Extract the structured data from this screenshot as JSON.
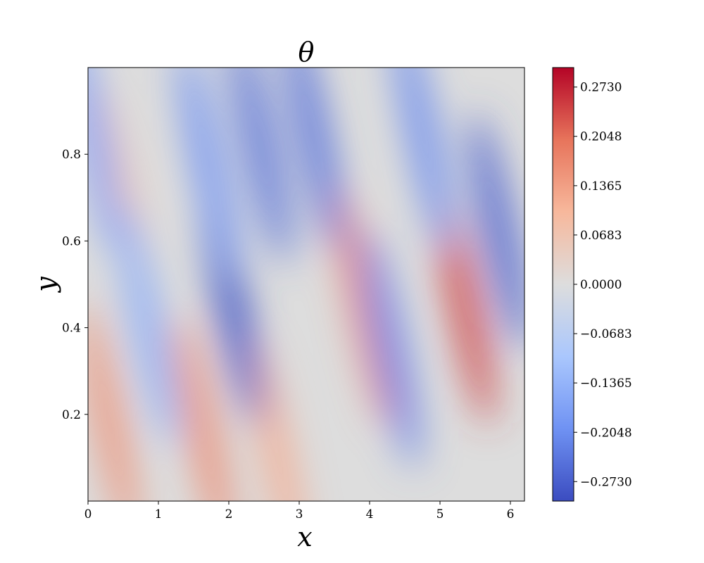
{
  "chart_data": {
    "type": "heatmap",
    "title": "θ",
    "xlabel": "x",
    "ylabel": "y",
    "xlim": [
      0,
      6.2
    ],
    "ylim": [
      0,
      1
    ],
    "x_ticks": [
      0,
      1,
      2,
      3,
      4,
      5,
      6
    ],
    "x_tick_labels": [
      "0",
      "1",
      "2",
      "3",
      "4",
      "5",
      "6"
    ],
    "y_ticks": [
      0.2,
      0.4,
      0.6,
      0.8
    ],
    "y_tick_labels": [
      "0.2",
      "0.4",
      "0.6",
      "0.8"
    ],
    "colormap": "coolwarm",
    "colormap_stops": [
      "#3b4cc0",
      "#6f92f3",
      "#aac7fd",
      "#dddddd",
      "#f7b89c",
      "#e7745b",
      "#b40426"
    ],
    "value_range": [
      -0.3,
      0.3
    ],
    "colorbar_ticks": [
      -0.273,
      -0.2048,
      -0.1365,
      -0.0683,
      0,
      0.0683,
      0.1365,
      0.2048,
      0.273
    ],
    "colorbar_tick_labels": [
      "−0.2730",
      "−0.2048",
      "−0.1365",
      "−0.0683",
      "0.0000",
      "0.0683",
      "0.1365",
      "0.2048",
      "0.2730"
    ],
    "grid": false,
    "field_features": [
      {
        "kind": "warm",
        "x": 0.3,
        "y": 0.18,
        "amplitude": 0.16
      },
      {
        "kind": "warm",
        "x": 0.5,
        "y": 0.68,
        "amplitude": 0.08
      },
      {
        "kind": "warm",
        "x": 1.65,
        "y": 0.15,
        "amplitude": 0.17
      },
      {
        "kind": "warm",
        "x": 2.7,
        "y": 0.1,
        "amplitude": 0.12
      },
      {
        "kind": "warm",
        "x": 3.9,
        "y": 0.45,
        "amplitude": 0.17
      },
      {
        "kind": "warm",
        "x": 5.35,
        "y": 0.45,
        "amplitude": 0.25
      },
      {
        "kind": "cool",
        "x": 0.05,
        "y": 0.85,
        "amplitude": -0.17
      },
      {
        "kind": "cool",
        "x": 0.85,
        "y": 0.4,
        "amplitude": -0.15
      },
      {
        "kind": "cool",
        "x": 2.05,
        "y": 0.45,
        "amplitude": -0.29
      },
      {
        "kind": "cool",
        "x": 1.7,
        "y": 0.78,
        "amplitude": -0.2
      },
      {
        "kind": "cool",
        "x": 2.45,
        "y": 0.82,
        "amplitude": -0.25
      },
      {
        "kind": "cool",
        "x": 3.2,
        "y": 0.85,
        "amplitude": -0.25
      },
      {
        "kind": "cool",
        "x": 4.3,
        "y": 0.35,
        "amplitude": -0.22
      },
      {
        "kind": "cool",
        "x": 4.75,
        "y": 0.85,
        "amplitude": -0.21
      },
      {
        "kind": "cool",
        "x": 5.85,
        "y": 0.62,
        "amplitude": -0.27
      }
    ]
  }
}
